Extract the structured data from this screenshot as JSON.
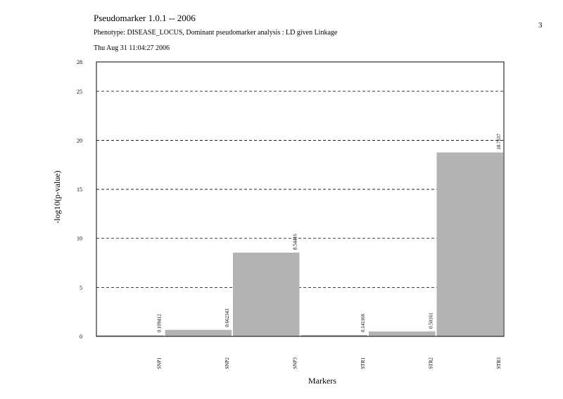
{
  "header": {
    "title": "Pseudomarker 1.0.1 -- 2006",
    "subtitle": "Phenotype: DISEASE_LOCUS, Dominant pseudomarker analysis : LD given Linkage",
    "datetime": "Thu Aug 31 11:04:27 2006",
    "page_number": "3"
  },
  "chart_data": {
    "type": "bar",
    "title": "Pseudomarker 1.0.1 -- 2006",
    "xlabel": "Markers",
    "ylabel": "-log10(p-value)",
    "ylim": [
      0,
      28
    ],
    "yticks": [
      0,
      5,
      10,
      15,
      20,
      25,
      28
    ],
    "grid": "horizontal dashed",
    "categories": [
      "SNP1",
      "SNP2",
      "SNP3",
      "STR1",
      "STR2",
      "STR3"
    ],
    "values": [
      0.109412,
      0.662343,
      8.54416,
      0.141166,
      0.50161,
      18.7637
    ],
    "value_labels": [
      "0.109412",
      "0.662343",
      "8.54416",
      "0.141166",
      "0.50161",
      "18.7637"
    ],
    "bar_color": "#b3b3b3"
  }
}
